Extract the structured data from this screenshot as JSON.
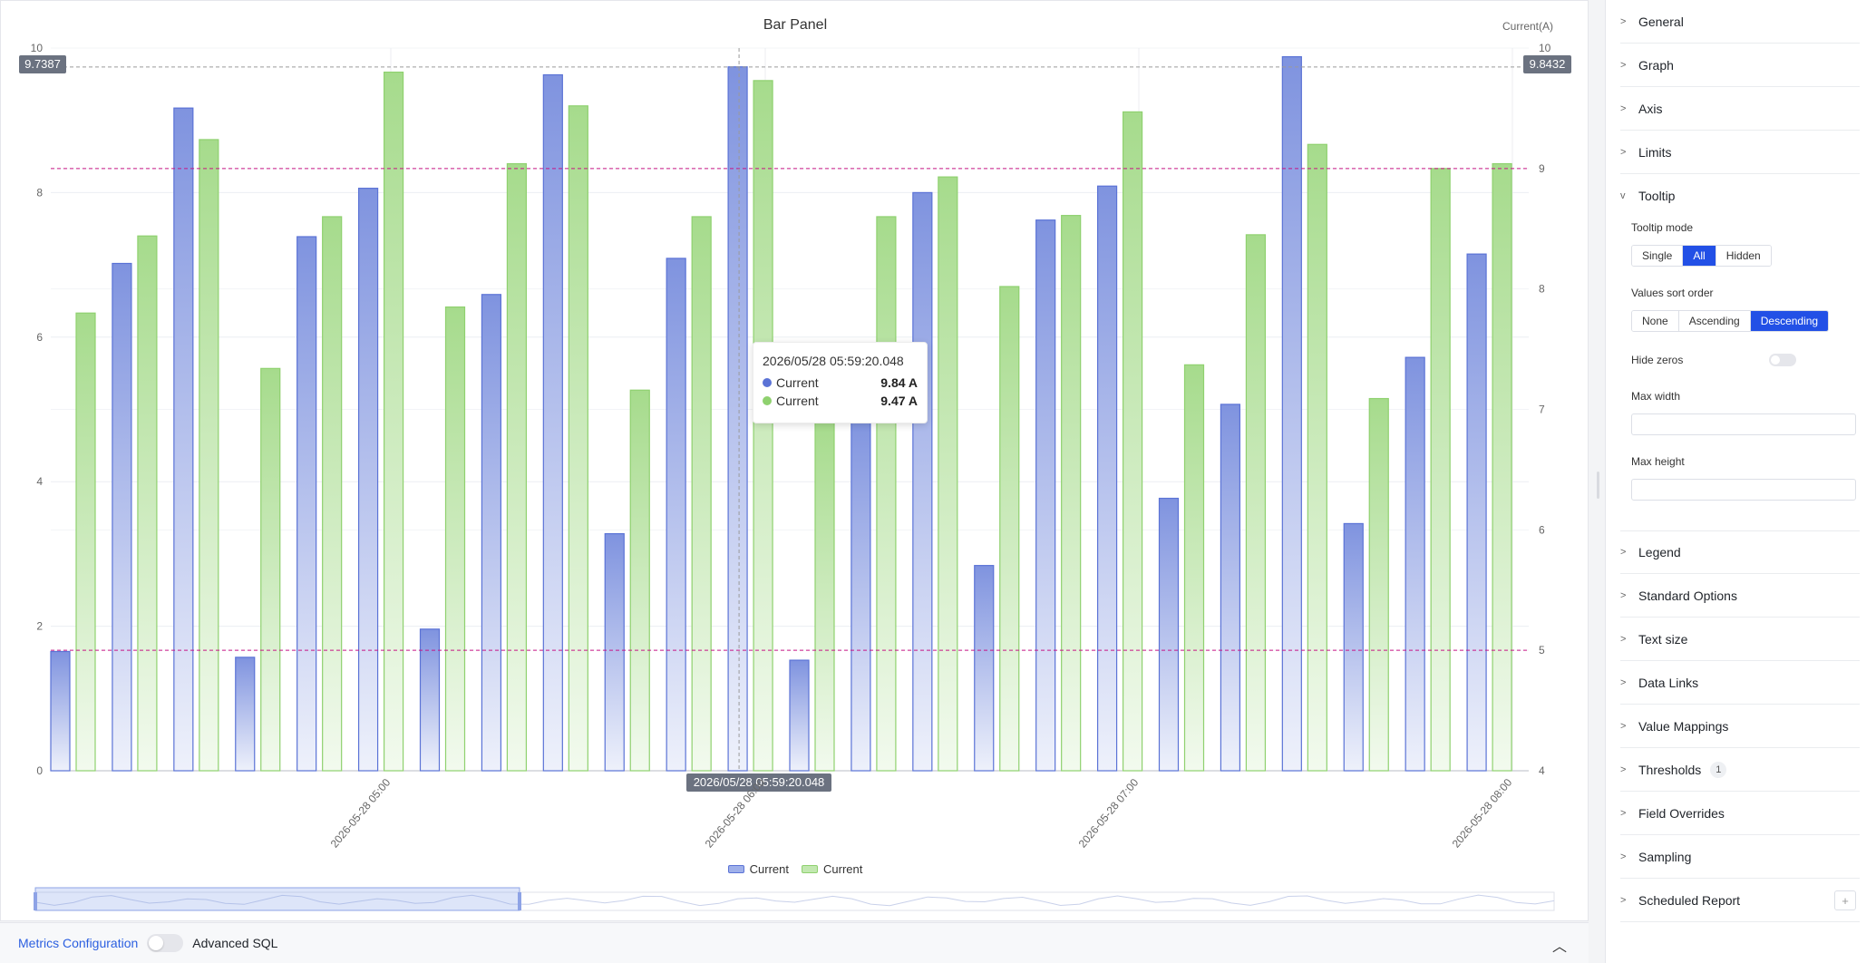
{
  "chart_panel": {
    "title": "Bar Panel",
    "y2_unit": "Current(A)",
    "left_marker_label": "9.7387",
    "right_marker_label": "9.8432",
    "crosshair_label": "2026/05/28 05:59:20.048"
  },
  "tooltip": {
    "time": "2026/05/28 05:59:20.048",
    "rows": [
      {
        "name": "Current",
        "value": "9.84 A",
        "color": "#5b73d6"
      },
      {
        "name": "Current",
        "value": "9.47 A",
        "color": "#8fd16f"
      }
    ]
  },
  "chart_data": {
    "type": "bar",
    "title": "Bar Panel",
    "y_left": {
      "ylim": [
        0,
        10
      ],
      "ticks": [
        0,
        2,
        4,
        6,
        8,
        10
      ]
    },
    "y_right": {
      "label": "Current(A)",
      "ylim": [
        4,
        10
      ],
      "ticks": [
        4,
        5,
        6,
        7,
        8,
        9,
        10
      ]
    },
    "x_tick_labels": [
      "2026-05-28 05:00",
      "2026-05-28 06:00",
      "2026-05-28 07:00",
      "2026-05-28 08:00"
    ],
    "series": [
      {
        "name": "Current",
        "axis": "left",
        "color": "#5b73d6",
        "values": [
          1.65,
          7.02,
          9.17,
          1.57,
          7.39,
          8.06,
          1.96,
          6.59,
          9.63,
          3.28,
          7.09,
          9.74,
          1.53,
          4.9,
          8.0,
          2.84,
          7.62,
          8.09,
          3.77,
          5.07,
          9.88,
          3.42,
          5.72,
          7.15
        ]
      },
      {
        "name": "Current",
        "axis": "right",
        "color": "#8fd16f",
        "values": [
          7.8,
          8.44,
          9.24,
          7.34,
          8.6,
          9.8,
          7.85,
          9.04,
          9.52,
          7.16,
          8.6,
          9.73,
          6.9,
          8.6,
          8.93,
          8.02,
          8.61,
          9.47,
          7.37,
          8.45,
          9.2,
          7.09,
          9.0,
          9.04
        ]
      }
    ],
    "reference_lines": [
      {
        "axis": "right",
        "value": 9.0,
        "color": "#c71585"
      },
      {
        "axis": "right",
        "value": 5.0,
        "color": "#c71585"
      }
    ],
    "legend": {
      "position": "bottom-center",
      "entries": [
        "Current",
        "Current"
      ]
    },
    "grid": true
  },
  "bottom_bar": {
    "metrics_label": "Metrics Configuration",
    "advanced_sql_label": "Advanced SQL"
  },
  "settings": {
    "sections": {
      "general": "General",
      "graph": "Graph",
      "axis": "Axis",
      "limits": "Limits",
      "tooltip": "Tooltip",
      "legend": "Legend",
      "standard_options": "Standard Options",
      "text_size": "Text size",
      "data_links": "Data Links",
      "value_mappings": "Value Mappings",
      "thresholds": "Thresholds",
      "field_overrides": "Field Overrides",
      "sampling": "Sampling",
      "scheduled_report": "Scheduled Report"
    },
    "thresholds_count": "1",
    "tooltip_mode": {
      "label": "Tooltip mode",
      "options": [
        "Single",
        "All",
        "Hidden"
      ],
      "selected": "All"
    },
    "values_sort_order": {
      "label": "Values sort order",
      "options": [
        "None",
        "Ascending",
        "Descending"
      ],
      "selected": "Descending"
    },
    "hide_zeros_label": "Hide zeros",
    "max_width_label": "Max width",
    "max_height_label": "Max height"
  }
}
